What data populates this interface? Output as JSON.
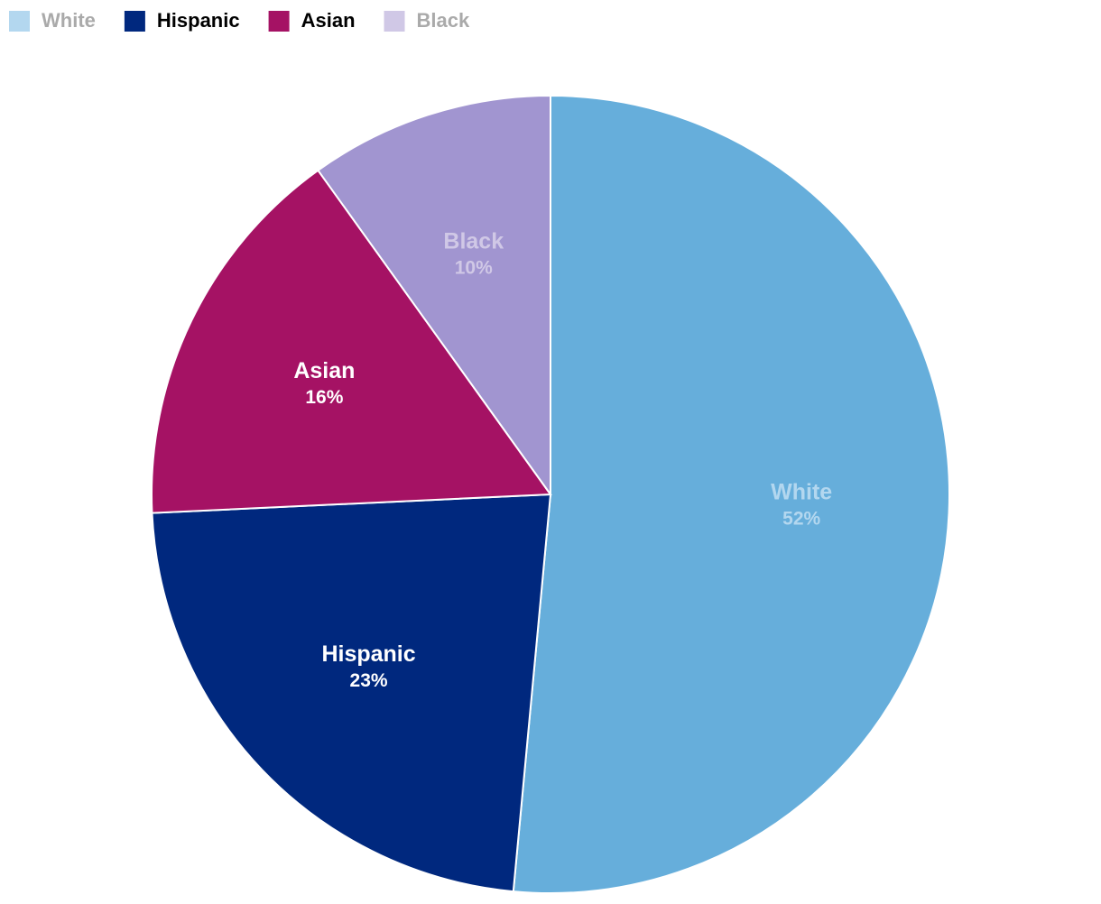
{
  "chart_data": {
    "type": "pie",
    "categories": [
      "White",
      "Hispanic",
      "Asian",
      "Black"
    ],
    "values": [
      52,
      23,
      16,
      10
    ],
    "value_labels": [
      "52%",
      "23%",
      "16%",
      "10%"
    ],
    "colors": [
      "#66aedb",
      "#00287e",
      "#a51264",
      "#a195d0"
    ],
    "label_colors": [
      "#b3d7ef",
      "#ffffff",
      "#ffffff",
      "#d0c8e6"
    ],
    "legend": "top-left",
    "legend_colors": [
      "#b3d7ef",
      "#00287e",
      "#a51264",
      "#d0c8e6"
    ],
    "legend_text_colors": [
      "#aaaaaa",
      "#000000",
      "#000000",
      "#aaaaaa"
    ]
  }
}
